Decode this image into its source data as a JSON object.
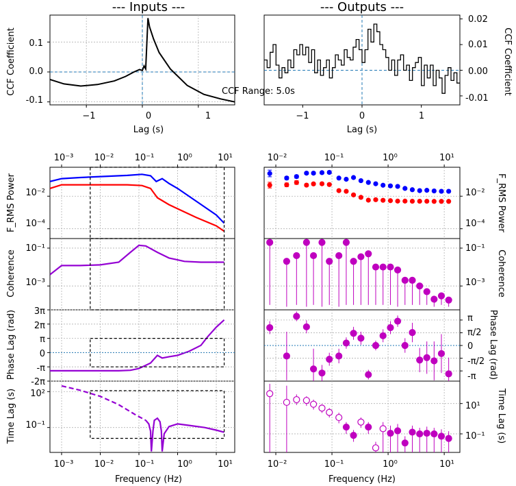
{
  "figure": {
    "inputs_title": "--- Inputs ---",
    "outputs_title": "--- Outputs ---",
    "ccf_range_text": "CCF Range: 5.0s"
  },
  "labels": {
    "ccf_ylabel": "CCF Coefficient",
    "lag_xlabel": "Lag (s)",
    "frequency_xlabel": "Frequency (Hz)",
    "frms_ylabel": "F_RMS Power",
    "coherence_ylabel": "Coherence",
    "phase_ylabel": "Phase Lag (rad)",
    "timelag_ylabel": "Time Lag (s)"
  },
  "ticks": {
    "ccf_in_y": [
      "0.1",
      "0.0",
      "-0.1"
    ],
    "ccf_in_x": [
      "−1",
      "0",
      "1"
    ],
    "ccf_out_y": [
      "0.02",
      "0.01",
      "0.00",
      "-0.01"
    ],
    "ccf_out_x": [
      "−1",
      "0",
      "1"
    ],
    "left_top_x": [
      "10⁻³",
      "10⁻²",
      "10⁻¹",
      "10⁰",
      "10¹"
    ],
    "left_bottom_x": [
      "10⁻³",
      "10⁻²",
      "10⁻¹",
      "10⁰",
      "10¹"
    ],
    "right_top_x": [
      "10⁻²",
      "10⁻¹",
      "10⁰",
      "10¹"
    ],
    "right_bottom_x": [
      "10⁻²",
      "10⁻¹",
      "10⁰",
      "10¹"
    ],
    "frms_y": [
      "10⁻²",
      "10⁻⁴"
    ],
    "coh_y": [
      "10⁻¹",
      "10⁻³"
    ],
    "phase_left_y": [
      "3π",
      "2π",
      "π",
      "0",
      "-π",
      "-2π"
    ],
    "phase_right_y": [
      "π",
      "π/2",
      "0",
      "-π/2",
      "-π"
    ],
    "tlag_left_y": [
      "10²",
      "10⁻¹"
    ],
    "tlag_right_y": [
      "10¹",
      "10⁻¹"
    ]
  },
  "chart_data": [
    {
      "type": "line",
      "panel": "ccf-inputs",
      "title": "--- Inputs ---",
      "xlabel": "Lag (s)",
      "ylabel": "CCF Coefficient",
      "xlim": [
        -1.65,
        1.65
      ],
      "ylim": [
        -0.11,
        0.19
      ],
      "color": "#000000",
      "x": [
        -1.65,
        -1.4,
        -1.1,
        -0.8,
        -0.5,
        -0.3,
        -0.15,
        -0.05,
        0.0,
        0.03,
        0.06,
        0.1,
        0.13,
        0.2,
        0.3,
        0.5,
        0.8,
        1.1,
        1.4,
        1.65
      ],
      "y": [
        -0.025,
        -0.04,
        -0.047,
        -0.042,
        -0.03,
        -0.015,
        0.0,
        0.008,
        0.005,
        0.02,
        0.01,
        0.18,
        0.15,
        0.11,
        0.065,
        0.01,
        -0.045,
        -0.075,
        -0.09,
        -0.1
      ],
      "reference_lines": {
        "x": 0,
        "y": 0
      }
    },
    {
      "type": "line",
      "panel": "ccf-outputs",
      "title": "--- Outputs ---",
      "xlabel": "Lag (s)",
      "ylabel": "CCF Coefficient",
      "xlim": [
        -1.65,
        1.65
      ],
      "ylim": [
        -0.0135,
        0.0215
      ],
      "step": true,
      "color": "#000000",
      "x": [
        -1.65,
        -1.6,
        -1.55,
        -1.5,
        -1.45,
        -1.4,
        -1.35,
        -1.3,
        -1.25,
        -1.2,
        -1.15,
        -1.1,
        -1.05,
        -1.0,
        -0.95,
        -0.9,
        -0.85,
        -0.8,
        -0.75,
        -0.7,
        -0.65,
        -0.6,
        -0.55,
        -0.5,
        -0.45,
        -0.4,
        -0.35,
        -0.3,
        -0.25,
        -0.2,
        -0.15,
        -0.1,
        -0.05,
        0.0,
        0.05,
        0.1,
        0.15,
        0.2,
        0.25,
        0.3,
        0.35,
        0.4,
        0.45,
        0.5,
        0.55,
        0.6,
        0.65,
        0.7,
        0.75,
        0.8,
        0.85,
        0.9,
        0.95,
        1.0,
        1.05,
        1.1,
        1.15,
        1.2,
        1.25,
        1.3,
        1.35,
        1.4,
        1.45,
        1.5,
        1.55,
        1.6
      ],
      "y": [
        0.004,
        0.001,
        0.007,
        0.01,
        0.002,
        -0.003,
        0.001,
        -0.001,
        0.004,
        0.001,
        0.008,
        0.006,
        0.01,
        0.006,
        0.009,
        0.003,
        0.008,
        -0.001,
        0.004,
        -0.002,
        0.001,
        0.004,
        -0.003,
        0.001,
        0.006,
        0.004,
        0.002,
        0.008,
        0.005,
        0.004,
        0.009,
        0.012,
        0.008,
        0.003,
        0.008,
        0.016,
        0.011,
        0.018,
        0.015,
        0.01,
        0.008,
        0.005,
        0.0,
        0.004,
        -0.002,
        0.004,
        0.006,
        0.0,
        0.002,
        -0.004,
        0.001,
        0.003,
        0.005,
        -0.006,
        0.002,
        -0.003,
        0.002,
        -0.006,
        0.0,
        -0.003,
        -0.009,
        -0.002,
        0.001,
        -0.004,
        -0.001,
        -0.005
      ],
      "reference_lines": {
        "x": 0,
        "y": 0
      }
    },
    {
      "type": "line",
      "panel": "frms-inputs",
      "ylabel": "F_RMS Power",
      "xscale": "log",
      "yscale": "log",
      "xlim": [
        0.0005,
        30
      ],
      "ylim": [
        2.5e-05,
        0.6
      ],
      "series": [
        {
          "name": "blue",
          "color": "#0000ff",
          "x": [
            0.0005,
            0.001,
            0.003,
            0.01,
            0.05,
            0.12,
            0.2,
            0.28,
            0.4,
            0.6,
            1,
            3,
            10,
            16
          ],
          "y": [
            0.08,
            0.12,
            0.14,
            0.16,
            0.19,
            0.22,
            0.18,
            0.08,
            0.12,
            0.06,
            0.03,
            0.005,
            0.0007,
            0.00022
          ]
        },
        {
          "name": "red",
          "color": "#ff0000",
          "x": [
            0.0005,
            0.001,
            0.003,
            0.01,
            0.05,
            0.12,
            0.2,
            0.3,
            0.6,
            1,
            3,
            10,
            16
          ],
          "y": [
            0.03,
            0.05,
            0.05,
            0.05,
            0.05,
            0.045,
            0.03,
            0.008,
            0.003,
            0.0017,
            0.0005,
            0.00015,
            7e-05
          ]
        }
      ],
      "box": {
        "x": [
          0.0055,
          16
        ],
        "y": "full"
      }
    },
    {
      "type": "line",
      "panel": "coherence-inputs",
      "ylabel": "Coherence",
      "xscale": "log",
      "yscale": "log",
      "xlim": [
        0.0005,
        30
      ],
      "ylim": [
        5.5e-05,
        0.32
      ],
      "series": [
        {
          "name": "coherence",
          "color": "#9400d3",
          "x": [
            0.0005,
            0.001,
            0.003,
            0.01,
            0.03,
            0.06,
            0.1,
            0.15,
            0.3,
            0.6,
            1.5,
            4,
            10,
            16
          ],
          "y": [
            0.004,
            0.012,
            0.012,
            0.013,
            0.018,
            0.06,
            0.14,
            0.13,
            0.06,
            0.03,
            0.02,
            0.018,
            0.018,
            0.018
          ]
        }
      ],
      "box": {
        "x": [
          0.0055,
          16
        ],
        "y": "full"
      }
    },
    {
      "type": "line",
      "panel": "phase-inputs",
      "ylabel": "Phase Lag (rad)",
      "xscale": "log",
      "xlim": [
        0.0005,
        30
      ],
      "ylim": [
        -6.2832,
        9.4248
      ],
      "series": [
        {
          "name": "phase",
          "color": "#9400d3",
          "x": [
            0.0005,
            0.001,
            0.01,
            0.03,
            0.06,
            0.1,
            0.2,
            0.3,
            0.4,
            0.6,
            1,
            2,
            4,
            6,
            10,
            16
          ],
          "y": [
            -4.0,
            -4.0,
            -4.0,
            -4.0,
            -3.9,
            -3.5,
            -2.3,
            -0.6,
            -1.2,
            -0.9,
            -0.6,
            0.3,
            1.6,
            3.5,
            5.6,
            7.2
          ]
        }
      ],
      "reference_y": 0,
      "box": {
        "x": [
          0.0055,
          16
        ],
        "y": [
          -3.1416,
          3.1416
        ]
      }
    },
    {
      "type": "line",
      "panel": "timelag-inputs",
      "xlabel": "Frequency (Hz)",
      "ylabel": "Time Lag (s)",
      "xscale": "log",
      "yscale": "log",
      "xlim": [
        0.0005,
        30
      ],
      "ylim": [
        0.00083,
        750
      ],
      "series": [
        {
          "name": "time-lag-dashed",
          "color": "#9400d3",
          "style": "dashed",
          "x": [
            0.001,
            0.003,
            0.01,
            0.03,
            0.08,
            0.15
          ],
          "y": [
            300,
            130,
            40,
            8,
            1.2,
            0.4
          ]
        },
        {
          "name": "time-lag-solid",
          "color": "#9400d3",
          "style": "solid",
          "x": [
            0.15,
            0.18,
            0.2,
            0.21,
            0.23,
            0.25,
            0.3,
            0.35,
            0.38,
            0.4,
            0.45,
            0.6,
            1,
            2,
            5,
            10,
            16
          ],
          "y": [
            0.4,
            0.2,
            0.05,
            0.001,
            0.05,
            0.4,
            0.6,
            0.3,
            0.05,
            0.001,
            0.03,
            0.12,
            0.2,
            0.15,
            0.1,
            0.06,
            0.04
          ]
        }
      ],
      "box": {
        "x": [
          0.0055,
          16
        ],
        "y": [
          0.0124,
          120
        ]
      }
    },
    {
      "type": "scatter",
      "panel": "frms-outputs",
      "ylabel": "F_RMS Power",
      "xscale": "log",
      "yscale": "log",
      "xlim": [
        0.0062,
        19
      ],
      "ylim": [
        2.5e-05,
        0.6
      ],
      "series": [
        {
          "name": "blue",
          "color": "#0000ff",
          "x": [
            0.0078,
            0.0156,
            0.0234,
            0.0352,
            0.0469,
            0.0664,
            0.0898,
            0.1328,
            0.1797,
            0.2422,
            0.3281,
            0.4453,
            0.6016,
            0.8125,
            1.1,
            1.48,
            2.0,
            2.7,
            3.65,
            4.9,
            6.6,
            8.9,
            12
          ],
          "y": [
            0.25,
            0.13,
            0.16,
            0.26,
            0.26,
            0.28,
            0.29,
            0.13,
            0.11,
            0.14,
            0.09,
            0.07,
            0.058,
            0.047,
            0.043,
            0.04,
            0.03,
            0.025,
            0.022,
            0.023,
            0.021,
            0.02,
            0.02
          ],
          "err": [
            1.6,
            1.25,
            1.25,
            1.2,
            1.2,
            1.2,
            1.2,
            1.15,
            1.15,
            1.15,
            1.1,
            1.1,
            1.08,
            1.06,
            1.05,
            1.05,
            1.05,
            1.04,
            1.04,
            1.04,
            1.04,
            1.04,
            1.04
          ]
        },
        {
          "name": "red",
          "color": "#ff0000",
          "x": [
            0.0078,
            0.0156,
            0.0234,
            0.0352,
            0.0469,
            0.0664,
            0.0898,
            0.1328,
            0.1797,
            0.2422,
            0.3281,
            0.4453,
            0.6016,
            0.8125,
            1.1,
            1.48,
            2.0,
            2.7,
            3.65,
            4.9,
            6.6,
            8.9,
            12
          ],
          "y": [
            0.048,
            0.05,
            0.069,
            0.048,
            0.057,
            0.058,
            0.052,
            0.022,
            0.02,
            0.012,
            0.0085,
            0.0057,
            0.0061,
            0.0056,
            0.0053,
            0.005,
            0.005,
            0.0049,
            0.0049,
            0.0049,
            0.0048,
            0.0048,
            0.0048
          ],
          "err": [
            1.5,
            1.3,
            1.3,
            1.2,
            1.2,
            1.2,
            1.2,
            1.15,
            1.15,
            1.15,
            1.12,
            1.1,
            1.08,
            1.06,
            1.05,
            1.05,
            1.05,
            1.04,
            1.04,
            1.04,
            1.04,
            1.04,
            1.04
          ]
        }
      ]
    },
    {
      "type": "scatter",
      "panel": "coherence-outputs",
      "ylabel": "Coherence",
      "xscale": "log",
      "yscale": "log",
      "xlim": [
        0.0062,
        19
      ],
      "ylim": [
        5.5e-05,
        0.32
      ],
      "series": [
        {
          "name": "coherence",
          "color": "#bf00bf",
          "x": [
            0.0078,
            0.0156,
            0.0234,
            0.0352,
            0.0469,
            0.0664,
            0.0898,
            0.1328,
            0.1797,
            0.2422,
            0.3281,
            0.4453,
            0.6016,
            0.8125,
            1.1,
            1.48,
            2.0,
            2.7,
            3.65,
            4.9,
            6.6,
            8.9,
            12
          ],
          "y": [
            0.2,
            0.02,
            0.04,
            0.2,
            0.04,
            0.2,
            0.02,
            0.04,
            0.2,
            0.02,
            0.035,
            0.05,
            0.01,
            0.01,
            0.01,
            0.007,
            0.002,
            0.002,
            0.001,
            0.0005,
            0.0002,
            0.0003,
            0.00018
          ],
          "err_low": [
            0.0001,
            8e-05,
            0.0001,
            8e-05,
            0.0001,
            8e-05,
            0.0001,
            8e-05,
            0.0001,
            0.0001,
            0.0001,
            0.0001,
            0.0001,
            0.0001,
            0.0001,
            8e-05,
            0.0001,
            0.0001,
            0.0001,
            0.0001,
            8e-05,
            0.0001,
            8e-05
          ]
        }
      ]
    },
    {
      "type": "scatter",
      "panel": "phase-outputs",
      "ylabel": "Phase Lag (rad)",
      "xscale": "log",
      "xlim": [
        0.0062,
        19
      ],
      "ylim": [
        -4.4,
        4.4
      ],
      "series": [
        {
          "name": "phase",
          "color": "#bf00bf",
          "x": [
            0.0078,
            0.0156,
            0.0234,
            0.0352,
            0.0469,
            0.0664,
            0.0898,
            0.1328,
            0.1797,
            0.2422,
            0.3281,
            0.4453,
            0.6016,
            0.8125,
            1.1,
            1.48,
            2.0,
            2.7,
            3.65,
            4.9,
            6.6,
            8.9,
            12
          ],
          "y": [
            2.2,
            -1.3,
            3.6,
            2.3,
            -2.9,
            -3.4,
            -1.7,
            -1.3,
            0.3,
            1.5,
            0.9,
            -3.6,
            0.0,
            1.2,
            2.2,
            3.0,
            0.0,
            1.6,
            -1.8,
            -1.5,
            -1.9,
            -1.0,
            -3.5
          ],
          "err": [
            0.8,
            3.0,
            0.6,
            0.8,
            2.5,
            1.0,
            0.8,
            0.9,
            0.7,
            0.8,
            0.8,
            0.6,
            0.6,
            0.8,
            0.8,
            0.7,
            0.9,
            1.2,
            1.5,
            2.0,
            2.4,
            2.4,
            2.0
          ]
        }
      ],
      "reference_y": 0
    },
    {
      "type": "scatter",
      "panel": "timelag-outputs",
      "xlabel": "Frequency (Hz)",
      "ylabel": "Time Lag (s)",
      "xscale": "log",
      "yscale": "log",
      "xlim": [
        0.0062,
        19
      ],
      "ylim": [
        0.006,
        300
      ],
      "series": [
        {
          "name": "time-lag",
          "color": "#bf00bf",
          "x": [
            0.0078,
            0.0156,
            0.0234,
            0.0352,
            0.0469,
            0.0664,
            0.0898,
            0.1328,
            0.1797,
            0.2422,
            0.3281,
            0.4453,
            0.6016,
            0.8125,
            1.1,
            1.48,
            2.0,
            2.7,
            3.65,
            4.9,
            6.6,
            8.9,
            12
          ],
          "y": [
            45,
            12,
            18,
            16,
            9,
            5,
            2.6,
            1.2,
            0.28,
            0.08,
            0.6,
            0.28,
            0.012,
            0.22,
            0.11,
            0.16,
            0.025,
            0.13,
            0.1,
            0.11,
            0.1,
            0.07,
            0.05
          ],
          "filled": [
            false,
            false,
            false,
            false,
            false,
            false,
            false,
            false,
            true,
            true,
            false,
            true,
            false,
            false,
            true,
            true,
            true,
            true,
            true,
            true,
            true,
            true,
            true
          ],
          "err_low": [
            0.006,
            0.006,
            8,
            7,
            4,
            2.4,
            1.2,
            0.5,
            0.1,
            0.03,
            0.25,
            0.1,
            0.006,
            0.006,
            0.006,
            0.006,
            0.006,
            0.006,
            0.006,
            0.006,
            0.006,
            0.006,
            0.006
          ],
          "err_high": [
            200,
            150,
            40,
            30,
            18,
            9,
            5,
            2.5,
            0.6,
            0.18,
            1.2,
            0.6,
            0.03,
            0.6,
            0.35,
            0.45,
            0.07,
            0.35,
            0.25,
            0.3,
            0.25,
            0.2,
            0.15
          ]
        }
      ]
    }
  ]
}
